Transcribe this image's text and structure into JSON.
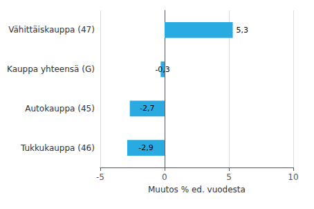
{
  "chart_data": {
    "type": "bar",
    "orientation": "horizontal",
    "categories": [
      "Tukkukauppa (46)",
      "Autokauppa (45)",
      "Kauppa yhteensä (G)",
      "Vähittäiskauppa (47)"
    ],
    "values": [
      -2.9,
      -2.7,
      -0.3,
      5.3
    ],
    "value_labels": [
      "-2,9",
      "-2,7",
      "-0,3",
      "5,3"
    ],
    "color": "#29ABE2",
    "xlabel": "Muutos % ed. vuodesta",
    "xlim": [
      -5,
      10
    ],
    "xticks": [
      -5,
      0,
      5,
      10
    ],
    "grid": true,
    "data_labels": true
  }
}
